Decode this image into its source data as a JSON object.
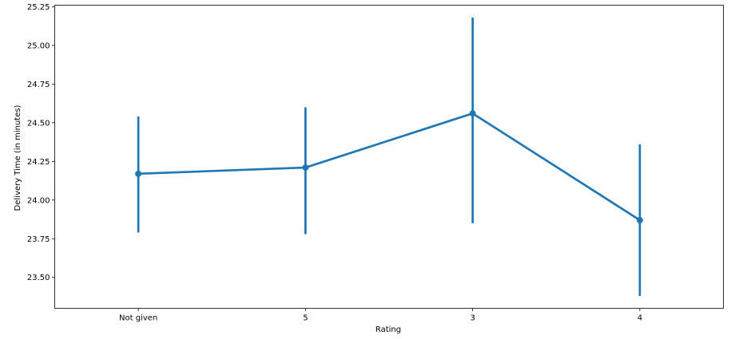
{
  "chart_data": {
    "type": "line",
    "title": "",
    "xlabel": "Rating",
    "ylabel": "Delivery Time (in minutes)",
    "categories": [
      "Not given",
      "5",
      "3",
      "4"
    ],
    "series": [
      {
        "values": [
          24.17,
          24.21,
          24.56,
          23.87
        ],
        "ci_low": [
          23.79,
          23.78,
          23.85,
          23.38
        ],
        "ci_high": [
          24.54,
          24.6,
          25.18,
          24.36
        ]
      }
    ],
    "ylim": [
      23.3,
      25.26
    ],
    "yticks": [
      23.5,
      23.75,
      24.0,
      24.25,
      24.5,
      24.75,
      25.0,
      25.25
    ],
    "ytick_labels": [
      "23.50",
      "23.75",
      "24.00",
      "24.25",
      "24.50",
      "24.75",
      "25.00",
      "25.25"
    ],
    "grid": false,
    "legend": "none",
    "color": "#1f77b4"
  }
}
